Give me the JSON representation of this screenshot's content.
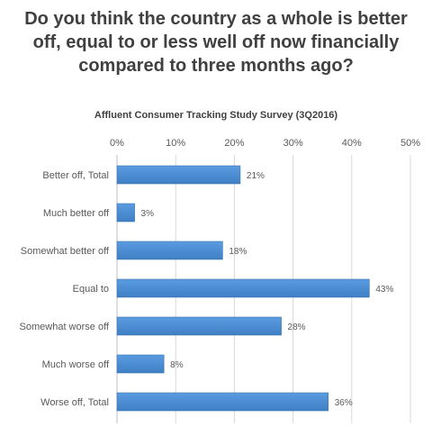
{
  "chart_data": {
    "type": "bar",
    "orientation": "horizontal",
    "title": "Do you think the country as a whole is better off, equal to or less well off now financially compared to three months ago?",
    "subtitle": "Affluent Consumer Tracking Study Survey (3Q2016)",
    "categories": [
      "Better off, Total",
      "Much better off",
      "Somewhat better off",
      "Equal to",
      "Somewhat worse off",
      "Much worse off",
      "Worse off, Total"
    ],
    "values": [
      21,
      3,
      18,
      43,
      28,
      8,
      36
    ],
    "data_labels": [
      "21%",
      "3%",
      "18%",
      "43%",
      "28%",
      "8%",
      "36%"
    ],
    "xlim": [
      0,
      50
    ],
    "ticks": [
      0,
      10,
      20,
      30,
      40,
      50
    ],
    "tick_labels": [
      "0%",
      "10%",
      "20%",
      "30%",
      "40%",
      "50%"
    ],
    "xlabel": "",
    "ylabel": "",
    "grid": true,
    "legend": "none",
    "bar_color": "#4a88cf"
  }
}
